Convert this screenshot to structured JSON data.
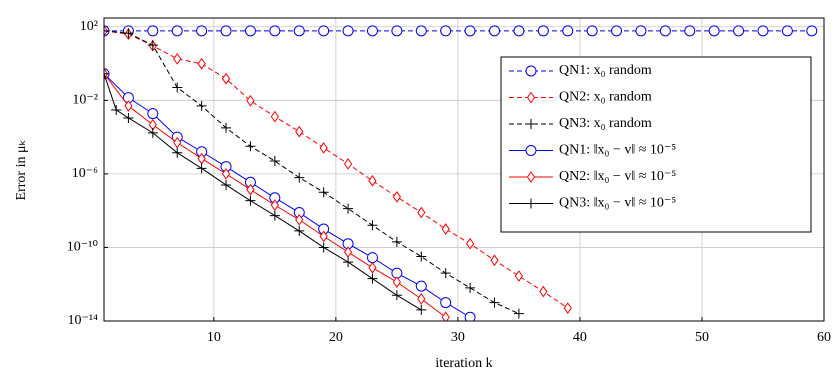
{
  "chart_data": {
    "type": "line",
    "xlabel": "iteration k",
    "ylabel": "Error in μₖ",
    "xlim": [
      1,
      60
    ],
    "xticks": [
      10,
      20,
      30,
      40,
      50,
      60
    ],
    "ylim": [
      1e-14,
      300
    ],
    "log_y": true,
    "yticks": [
      {
        "value": 1e-14,
        "label": "10⁻¹⁴"
      },
      {
        "value": 1e-10,
        "label": "10⁻¹⁰"
      },
      {
        "value": 1e-06,
        "label": "10⁻⁶"
      },
      {
        "value": 0.01,
        "label": "10⁻²"
      },
      {
        "value": 100,
        "label": "10²"
      }
    ],
    "grid": true,
    "legend": "upper-right",
    "series": [
      {
        "name": "QN1: x₀ random",
        "color": "#0000ff",
        "marker": "circle",
        "dash": true,
        "x": [
          1,
          3,
          5,
          7,
          9,
          11,
          13,
          15,
          17,
          19,
          21,
          23,
          25,
          27,
          29,
          31,
          33,
          35,
          37,
          39,
          41,
          43,
          45,
          47,
          49,
          51,
          53,
          55,
          57,
          59
        ],
        "values": [
          60,
          60,
          60,
          60,
          60,
          60,
          60,
          60,
          60,
          60,
          60,
          60,
          60,
          60,
          60,
          60,
          60,
          60,
          60,
          60,
          60,
          60,
          60,
          60,
          60,
          60,
          60,
          60,
          60,
          60
        ]
      },
      {
        "name": "QN2: x₀ random",
        "color": "#ff0000",
        "marker": "diamond",
        "dash": true,
        "x": [
          1,
          3,
          5,
          7,
          9,
          11,
          13,
          15,
          17,
          19,
          21,
          23,
          25,
          27,
          29,
          31,
          33,
          35,
          37,
          39
        ],
        "values": [
          60,
          40,
          9.3,
          1.8,
          0.98,
          0.15,
          0.0095,
          0.0013,
          0.0002,
          2.6e-05,
          3.5e-06,
          4.2e-07,
          5.6e-08,
          7.9e-09,
          1e-09,
          1.6e-10,
          2e-11,
          2.8e-12,
          4e-13,
          5e-14
        ]
      },
      {
        "name": "QN3: x₀ random",
        "color": "#000000",
        "marker": "plus",
        "dash": true,
        "x": [
          1,
          3,
          5,
          7,
          9,
          11,
          13,
          15,
          17,
          19,
          21,
          23,
          25,
          27,
          29,
          31,
          33,
          35
        ],
        "values": [
          60,
          45,
          10,
          0.05,
          0.005,
          0.00032,
          3.2e-05,
          5e-06,
          6.3e-07,
          1e-07,
          1.3e-08,
          1.6e-09,
          2e-10,
          3.2e-11,
          4e-12,
          6.3e-13,
          1e-13,
          2.5e-14
        ]
      },
      {
        "name": "QN1: ‖x₀ − v‖ ≈ 10⁻⁵",
        "color": "#0000ff",
        "marker": "circle",
        "dash": false,
        "x": [
          1,
          3,
          5,
          7,
          9,
          11,
          13,
          15,
          17,
          19,
          21,
          23,
          25,
          27,
          29,
          31
        ],
        "values": [
          0.28,
          0.014,
          0.0019,
          0.0001,
          1.6e-05,
          2.5e-06,
          3.5e-07,
          5e-08,
          7.9e-09,
          1e-09,
          1.6e-10,
          2.8e-11,
          4e-12,
          7.9e-13,
          1e-13,
          1.6e-14
        ]
      },
      {
        "name": "QN2: ‖x₀ − v‖ ≈ 10⁻⁵",
        "color": "#ff0000",
        "marker": "diamond",
        "dash": false,
        "x": [
          1,
          3,
          5,
          7,
          9,
          11,
          13,
          15,
          17,
          19,
          21,
          23,
          25,
          27,
          29
        ],
        "values": [
          0.28,
          0.005,
          0.00047,
          5e-05,
          6.8e-06,
          1e-06,
          1.4e-07,
          2e-08,
          3.2e-09,
          4e-10,
          5.6e-11,
          7.9e-12,
          1.3e-12,
          1.6e-13,
          1.6e-14
        ]
      },
      {
        "name": "QN3: ‖x₀ − v‖ ≈ 10⁻⁵",
        "color": "#000000",
        "marker": "plus",
        "dash": false,
        "x": [
          1,
          2,
          3,
          5,
          7,
          9,
          11,
          13,
          15,
          17,
          19,
          21,
          23,
          25,
          27
        ],
        "values": [
          0.28,
          0.003,
          0.0011,
          0.00017,
          1.4e-05,
          2e-06,
          2.5e-07,
          3.5e-08,
          5.4e-09,
          7.9e-10,
          1e-10,
          1.6e-11,
          2e-12,
          2.5e-13,
          4e-14
        ]
      }
    ]
  }
}
